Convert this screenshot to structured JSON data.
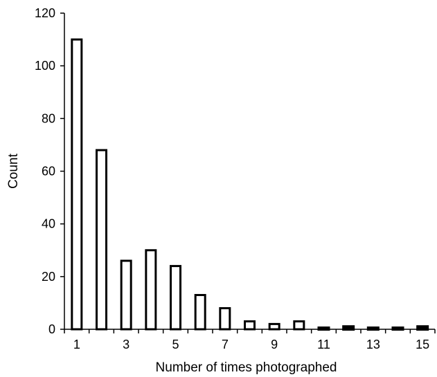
{
  "chart_data": {
    "type": "bar",
    "title": "",
    "xlabel": "Number of times photographed",
    "ylabel": "Count",
    "ylim": [
      0,
      120
    ],
    "yticks": [
      0,
      20,
      40,
      60,
      80,
      100,
      120
    ],
    "x_tick_labels": [
      "1",
      "3",
      "5",
      "7",
      "9",
      "11",
      "13",
      "15"
    ],
    "categories": [
      1,
      2,
      3,
      4,
      5,
      6,
      7,
      8,
      9,
      10,
      11,
      12,
      13,
      14,
      15
    ],
    "values": [
      110,
      68,
      26,
      30,
      24,
      13,
      8,
      3,
      2,
      3,
      0,
      1,
      0,
      0,
      1
    ],
    "grid": false,
    "legend": "none",
    "bar_fill": "#ffffff",
    "bar_stroke": "#000000"
  }
}
